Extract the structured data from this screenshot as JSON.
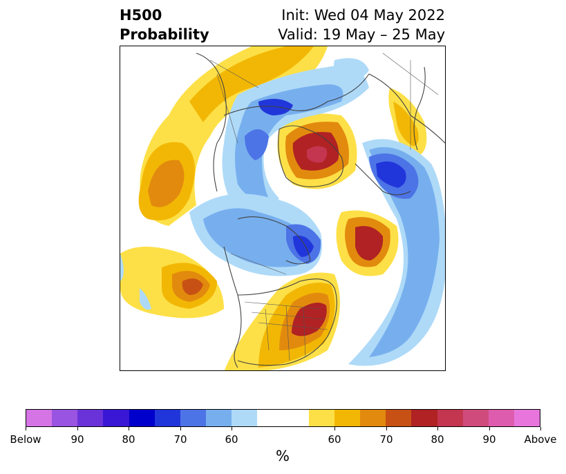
{
  "title": {
    "left_line1": "H500",
    "left_line2": "Probability",
    "right_line1": "Init: Wed 04 May 2022",
    "right_line2": "Valid: 19 May – 25 May"
  },
  "colorbar": {
    "unit": "%",
    "colors": [
      "#d574e5",
      "#9a54e2",
      "#6a33d9",
      "#3a17d4",
      "#0000cc",
      "#2136da",
      "#4d74e6",
      "#77afee",
      "#aedaf8",
      "#ffffff",
      "#ffffff",
      "#fde047",
      "#f2b705",
      "#e28a0e",
      "#c75114",
      "#b02223",
      "#c43550",
      "#cf4b7c",
      "#dd5cad",
      "#e775dc"
    ],
    "tick_labels": [
      "Below",
      "90",
      "80",
      "70",
      "60",
      "60",
      "70",
      "80",
      "90",
      "Above"
    ]
  },
  "legend_colors": {
    "below_strong": "#2136da",
    "below_weak": "#aedaf8",
    "above_weak": "#fde047",
    "above_strong": "#b02223"
  }
}
